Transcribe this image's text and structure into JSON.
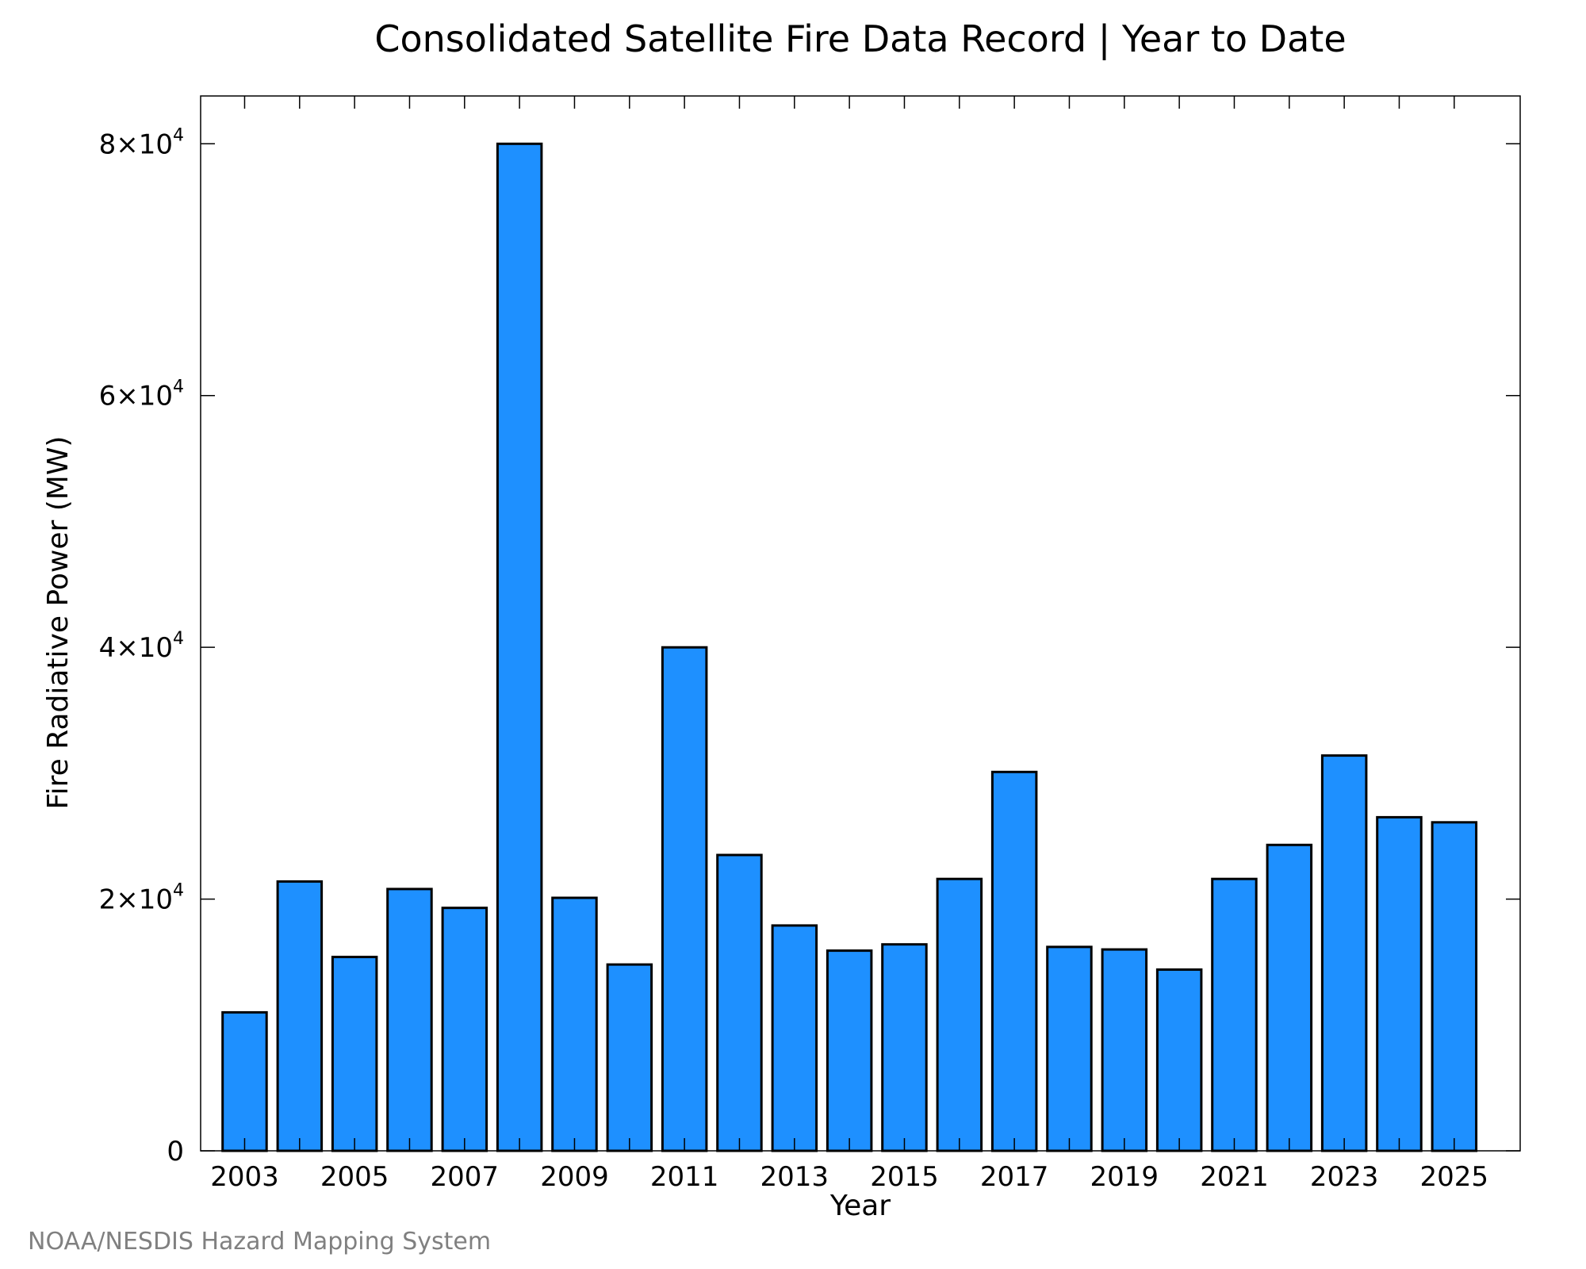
{
  "chart_data": {
    "type": "bar",
    "title": "Consolidated Satellite Fire Data Record | Year to Date",
    "xlabel": "Year",
    "ylabel": "Fire Radiative Power (MW)",
    "credit": "NOAA/NESDIS Hazard Mapping System",
    "categories": [
      "2003",
      "2004",
      "2005",
      "2006",
      "2007",
      "2008",
      "2009",
      "2010",
      "2011",
      "2012",
      "2013",
      "2014",
      "2015",
      "2016",
      "2017",
      "2018",
      "2019",
      "2020",
      "2021",
      "2022",
      "2023",
      "2024",
      "2025"
    ],
    "values": [
      11000,
      21400,
      15400,
      20800,
      19300,
      80000,
      20100,
      14800,
      40000,
      23500,
      17900,
      15900,
      16400,
      21600,
      30100,
      16200,
      16000,
      14400,
      21600,
      24300,
      31400,
      26500,
      26100
    ],
    "x_tick_labels": [
      "2003",
      "2005",
      "2007",
      "2009",
      "2011",
      "2013",
      "2015",
      "2017",
      "2019",
      "2021",
      "2023",
      "2025"
    ],
    "y_ticks": [
      {
        "value": 0,
        "label": "0"
      },
      {
        "value": 20000,
        "mantissa": "2×10",
        "exponent": "4"
      },
      {
        "value": 40000,
        "mantissa": "4×10",
        "exponent": "4"
      },
      {
        "value": 60000,
        "mantissa": "6×10",
        "exponent": "4"
      },
      {
        "value": 80000,
        "mantissa": "8×10",
        "exponent": "4"
      }
    ],
    "ylim": [
      0,
      83800
    ],
    "xlim": [
      2002.2,
      2026.2
    ],
    "bar_color": "#1e90ff",
    "grid": false,
    "legend": "none"
  }
}
